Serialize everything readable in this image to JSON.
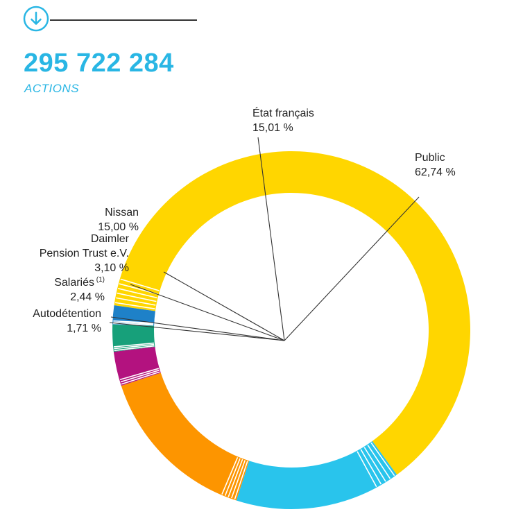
{
  "header": {
    "total_shares": "295 722 284",
    "caption": "ACTIONS",
    "icon": "download-circle-icon"
  },
  "colors": {
    "public": "#ffd600",
    "etat": "#29c4ec",
    "nissan": "#fd9500",
    "daimler": "#b3127f",
    "salaries": "#17a07a",
    "autodetention": "#1e81c8",
    "accent": "#29b6e4"
  },
  "chart_data": {
    "type": "pie",
    "style": "donut",
    "title": "",
    "slices": [
      {
        "label": "Public",
        "value_text": "62,74 %",
        "value": 62.74,
        "color": "#ffd600"
      },
      {
        "label": "État français",
        "value_text": "15,01 %",
        "value": 15.01,
        "color": "#29c4ec"
      },
      {
        "label": "Nissan",
        "value_text": "15,00 %",
        "value": 15.0,
        "color": "#fd9500"
      },
      {
        "label": "Daimler Pension Trust e.V.",
        "label_lines": [
          "Daimler",
          "Pension Trust e.V."
        ],
        "value_text": "3,10 %",
        "value": 3.1,
        "color": "#b3127f"
      },
      {
        "label": "Salariés",
        "label_sup": "(1)",
        "value_text": "2,44 %",
        "value": 2.44,
        "color": "#17a07a"
      },
      {
        "label": "Autodétention",
        "value_text": "1,71 %",
        "value": 1.71,
        "color": "#1e81c8"
      }
    ]
  }
}
